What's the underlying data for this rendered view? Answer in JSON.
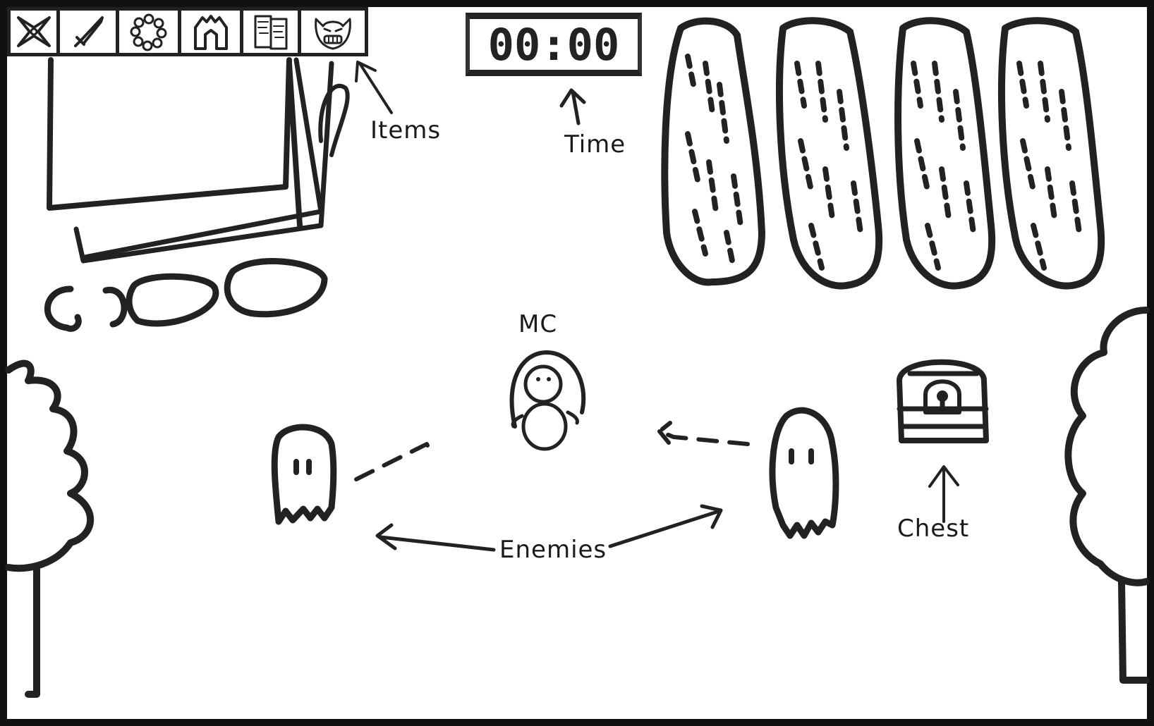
{
  "hud": {
    "timer": "00:00",
    "item_slots": [
      {
        "icon": "shuriken-icon"
      },
      {
        "icon": "sword-icon"
      },
      {
        "icon": "bead-bracelet-icon"
      },
      {
        "icon": "armor-icon"
      },
      {
        "icon": "scroll-cards-icon"
      },
      {
        "icon": "oni-mask-icon"
      }
    ]
  },
  "annotations": {
    "items": "Items",
    "time": "Time",
    "mc": "MC",
    "enemies": "Enemies",
    "chest": "Chest"
  }
}
